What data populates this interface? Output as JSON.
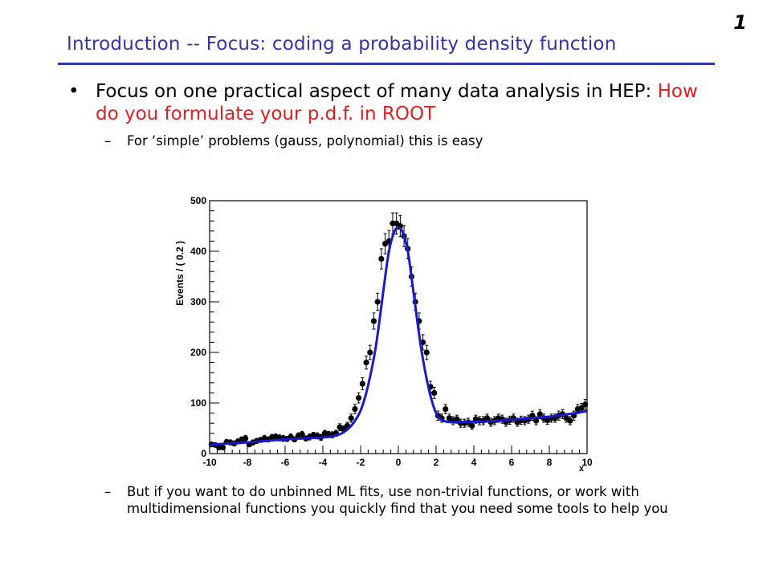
{
  "slide": {
    "number": "1",
    "title": "Introduction -- Focus: coding a probability density function",
    "bullet_marker": "•",
    "bullet_text": "Focus on one practical aspect of many data analysis in HEP: ",
    "bullet_highlight": "How do you formulate your p.d.f. in ROOT",
    "sub_marker": "–",
    "sub_point_1": "For ‘simple’ problems (gauss, polynomial) this is easy",
    "sub_point_2": "But if you want to do unbinned ML fits, use non-trivial functions, or work with multidimensional functions you quickly find that you need some tools to help you"
  },
  "colors": {
    "title": "#3333aa",
    "highlight": "#e02020",
    "fit_curve": "#1a1acc",
    "points": "#000000"
  },
  "chart_data": {
    "type": "scatter",
    "title": "",
    "xlabel": "x",
    "ylabel": "Events / ( 0.2 )",
    "xlim": [
      -10,
      10
    ],
    "ylim": [
      0,
      500
    ],
    "x_ticks": [
      -10,
      -8,
      -6,
      -4,
      -2,
      0,
      2,
      4,
      6,
      8,
      10
    ],
    "y_ticks": [
      0,
      100,
      200,
      300,
      400,
      500
    ],
    "grid": false,
    "series": [
      {
        "kind": "points_with_error_bars",
        "x": [
          -9.9,
          -9.7,
          -9.5,
          -9.3,
          -9.1,
          -8.9,
          -8.7,
          -8.5,
          -8.3,
          -8.1,
          -7.9,
          -7.7,
          -7.5,
          -7.3,
          -7.1,
          -6.9,
          -6.7,
          -6.5,
          -6.3,
          -6.1,
          -5.9,
          -5.7,
          -5.5,
          -5.3,
          -5.1,
          -4.9,
          -4.7,
          -4.5,
          -4.3,
          -4.1,
          -3.9,
          -3.7,
          -3.5,
          -3.3,
          -3.1,
          -2.9,
          -2.7,
          -2.5,
          -2.3,
          -2.1,
          -1.9,
          -1.7,
          -1.5,
          -1.3,
          -1.1,
          -0.9,
          -0.7,
          -0.5,
          -0.3,
          -0.1,
          0.1,
          0.3,
          0.5,
          0.7,
          0.9,
          1.1,
          1.3,
          1.5,
          1.7,
          1.9,
          2.1,
          2.3,
          2.5,
          2.7,
          2.9,
          3.1,
          3.3,
          3.5,
          3.7,
          3.9,
          4.1,
          4.3,
          4.5,
          4.7,
          4.9,
          5.1,
          5.3,
          5.5,
          5.7,
          5.9,
          6.1,
          6.3,
          6.5,
          6.7,
          6.9,
          7.1,
          7.3,
          7.5,
          7.7,
          7.9,
          8.1,
          8.3,
          8.5,
          8.7,
          8.9,
          9.1,
          9.3,
          9.5,
          9.7,
          9.9
        ],
        "y": [
          18,
          17,
          12,
          12,
          23,
          22,
          20,
          24,
          28,
          30,
          18,
          22,
          25,
          27,
          30,
          28,
          32,
          33,
          31,
          30,
          29,
          33,
          28,
          35,
          38,
          30,
          33,
          36,
          35,
          32,
          40,
          38,
          37,
          40,
          52,
          48,
          55,
          70,
          88,
          110,
          138,
          180,
          200,
          262,
          300,
          385,
          415,
          420,
          455,
          455,
          450,
          430,
          405,
          350,
          300,
          262,
          220,
          200,
          132,
          120,
          75,
          70,
          88,
          70,
          65,
          68,
          60,
          60,
          62,
          55,
          68,
          65,
          65,
          70,
          62,
          65,
          70,
          68,
          62,
          66,
          70,
          62,
          66,
          65,
          68,
          75,
          65,
          78,
          70,
          66,
          70,
          70,
          75,
          78,
          70,
          65,
          75,
          88,
          90,
          97
        ],
        "error": [
          4,
          4,
          4,
          4,
          5,
          5,
          5,
          5,
          5,
          6,
          4,
          5,
          5,
          5,
          6,
          5,
          6,
          6,
          6,
          6,
          5,
          6,
          5,
          6,
          6,
          5,
          6,
          6,
          6,
          6,
          6,
          6,
          6,
          6,
          7,
          7,
          7,
          8,
          9,
          10,
          12,
          13,
          14,
          16,
          17,
          20,
          20,
          21,
          21,
          21,
          21,
          21,
          20,
          19,
          17,
          16,
          15,
          14,
          11,
          11,
          9,
          8,
          9,
          8,
          8,
          8,
          8,
          8,
          8,
          7,
          8,
          8,
          8,
          8,
          8,
          8,
          8,
          8,
          8,
          8,
          8,
          8,
          8,
          8,
          8,
          9,
          8,
          9,
          8,
          8,
          8,
          8,
          9,
          9,
          8,
          8,
          9,
          9,
          9,
          10
        ]
      },
      {
        "kind": "fit_curve",
        "x": [
          -10,
          -9,
          -8,
          -7,
          -6,
          -5,
          -4,
          -3.5,
          -3,
          -2.5,
          -2,
          -1.6,
          -1.2,
          -0.8,
          -0.5,
          -0.2,
          0,
          0.2,
          0.5,
          0.8,
          1.2,
          1.6,
          2,
          2.4,
          3,
          4,
          5,
          6,
          7,
          8,
          9,
          10
        ],
        "y": [
          17,
          20,
          22,
          25,
          28,
          30,
          32,
          34,
          40,
          55,
          85,
          135,
          210,
          320,
          400,
          440,
          445,
          440,
          400,
          320,
          210,
          130,
          80,
          65,
          62,
          63,
          64,
          67,
          70,
          73,
          78,
          84
        ]
      }
    ]
  }
}
